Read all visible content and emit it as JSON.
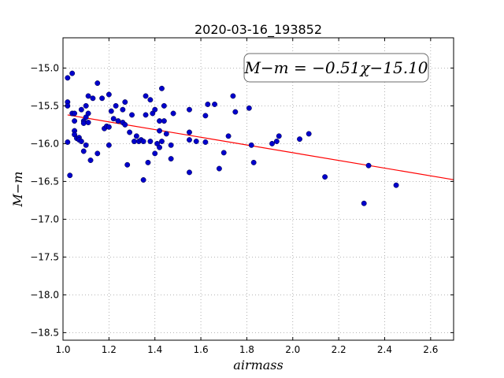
{
  "chart_data": {
    "type": "scatter",
    "title": "2020-03-16_193852",
    "xlabel": "airmass",
    "ylabel": "M−m",
    "xlim": [
      1.0,
      2.7
    ],
    "ylim": [
      -18.6,
      -14.6
    ],
    "y_inverted": true,
    "grid": true,
    "xticks": [
      1.0,
      1.2,
      1.4,
      1.6,
      1.8,
      2.0,
      2.2,
      2.4,
      2.6
    ],
    "xtick_labels": [
      "1.0",
      "1.2",
      "1.4",
      "1.6",
      "1.8",
      "2.0",
      "2.2",
      "2.4",
      "2.6"
    ],
    "yticks": [
      -15.0,
      -15.5,
      -16.0,
      -16.5,
      -17.0,
      -17.5,
      -18.0,
      -18.5
    ],
    "ytick_labels": [
      "−15.0",
      "−15.5",
      "−16.0",
      "−16.5",
      "−17.0",
      "−17.5",
      "−18.0",
      "−18.5"
    ],
    "annotation": "M−m = −0.51χ−15.10",
    "annotation_position": "top-right",
    "point_color": "#0000cc",
    "line_color": "#ff0000",
    "fit": {
      "slope": -0.51,
      "intercept": -15.1
    },
    "points": [
      [
        1.02,
        -15.13
      ],
      [
        1.04,
        -15.07
      ],
      [
        1.02,
        -15.45
      ],
      [
        1.02,
        -15.5
      ],
      [
        1.04,
        -15.6
      ],
      [
        1.05,
        -15.6
      ],
      [
        1.05,
        -15.7
      ],
      [
        1.05,
        -15.83
      ],
      [
        1.05,
        -15.88
      ],
      [
        1.06,
        -15.93
      ],
      [
        1.07,
        -15.92
      ],
      [
        1.07,
        -15.95
      ],
      [
        1.08,
        -15.97
      ],
      [
        1.02,
        -15.98
      ],
      [
        1.03,
        -16.42
      ],
      [
        1.08,
        -15.55
      ],
      [
        1.09,
        -15.7
      ],
      [
        1.09,
        -15.73
      ],
      [
        1.09,
        -16.1
      ],
      [
        1.1,
        -15.5
      ],
      [
        1.1,
        -15.65
      ],
      [
        1.1,
        -16.02
      ],
      [
        1.11,
        -15.37
      ],
      [
        1.11,
        -15.6
      ],
      [
        1.11,
        -15.72
      ],
      [
        1.12,
        -16.22
      ],
      [
        1.13,
        -15.4
      ],
      [
        1.15,
        -15.2
      ],
      [
        1.15,
        -16.13
      ],
      [
        1.17,
        -15.4
      ],
      [
        1.18,
        -15.8
      ],
      [
        1.19,
        -15.77
      ],
      [
        1.2,
        -15.35
      ],
      [
        1.2,
        -15.78
      ],
      [
        1.2,
        -16.02
      ],
      [
        1.21,
        -15.57
      ],
      [
        1.22,
        -15.67
      ],
      [
        1.23,
        -15.5
      ],
      [
        1.24,
        -15.7
      ],
      [
        1.26,
        -15.55
      ],
      [
        1.26,
        -15.72
      ],
      [
        1.27,
        -15.45
      ],
      [
        1.27,
        -15.75
      ],
      [
        1.28,
        -16.28
      ],
      [
        1.29,
        -15.85
      ],
      [
        1.3,
        -15.62
      ],
      [
        1.31,
        -15.97
      ],
      [
        1.32,
        -15.9
      ],
      [
        1.33,
        -15.97
      ],
      [
        1.34,
        -15.95
      ],
      [
        1.35,
        -16.48
      ],
      [
        1.35,
        -15.97
      ],
      [
        1.36,
        -15.37
      ],
      [
        1.36,
        -15.62
      ],
      [
        1.37,
        -16.25
      ],
      [
        1.38,
        -15.42
      ],
      [
        1.38,
        -15.97
      ],
      [
        1.39,
        -15.6
      ],
      [
        1.4,
        -15.55
      ],
      [
        1.4,
        -16.13
      ],
      [
        1.41,
        -16.0
      ],
      [
        1.42,
        -15.7
      ],
      [
        1.42,
        -16.05
      ],
      [
        1.42,
        -15.83
      ],
      [
        1.43,
        -15.97
      ],
      [
        1.43,
        -15.27
      ],
      [
        1.44,
        -15.7
      ],
      [
        1.44,
        -15.5
      ],
      [
        1.45,
        -15.87
      ],
      [
        1.47,
        -16.2
      ],
      [
        1.47,
        -16.02
      ],
      [
        1.48,
        -15.6
      ],
      [
        1.55,
        -15.55
      ],
      [
        1.55,
        -15.85
      ],
      [
        1.55,
        -15.95
      ],
      [
        1.55,
        -16.38
      ],
      [
        1.58,
        -15.97
      ],
      [
        1.62,
        -15.63
      ],
      [
        1.62,
        -15.98
      ],
      [
        1.63,
        -15.48
      ],
      [
        1.66,
        -15.48
      ],
      [
        1.68,
        -16.33
      ],
      [
        1.7,
        -16.12
      ],
      [
        1.72,
        -15.9
      ],
      [
        1.74,
        -15.37
      ],
      [
        1.75,
        -15.58
      ],
      [
        1.81,
        -15.53
      ],
      [
        1.82,
        -16.02
      ],
      [
        1.83,
        -16.25
      ],
      [
        1.91,
        -16.0
      ],
      [
        1.93,
        -15.97
      ],
      [
        1.94,
        -15.9
      ],
      [
        2.03,
        -15.94
      ],
      [
        2.07,
        -15.87
      ],
      [
        2.14,
        -16.44
      ],
      [
        2.31,
        -16.79
      ],
      [
        2.33,
        -16.29
      ],
      [
        2.45,
        -16.55
      ]
    ]
  }
}
